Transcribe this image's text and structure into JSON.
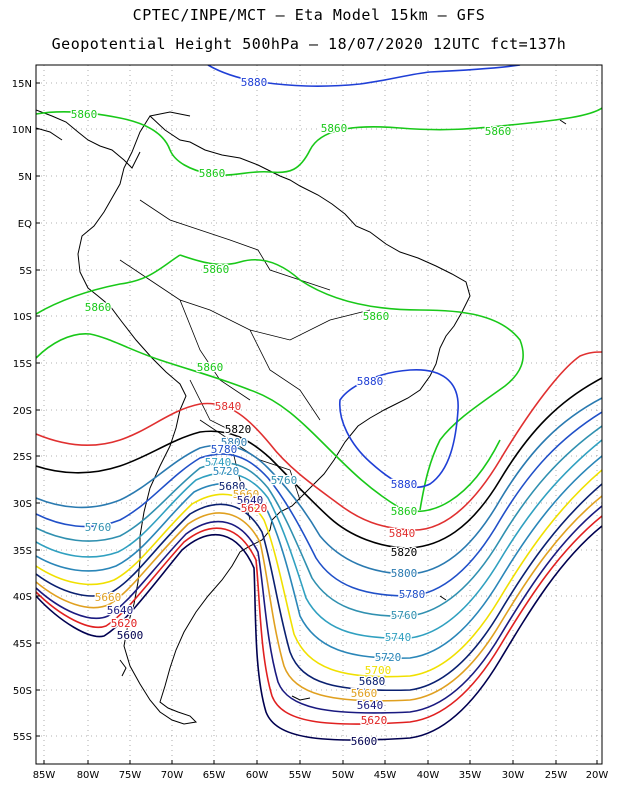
{
  "header": {
    "line1": "CPTEC/INPE/MCT –  Eta Model 15km – GFS",
    "line2": "Geopotential Height 500hPa – 18/07/2020 12UTC fct=137h"
  },
  "axes": {
    "lat_labels": [
      "15N",
      "10N",
      "5N",
      "EQ",
      "5S",
      "10S",
      "15S",
      "20S",
      "25S",
      "30S",
      "35S",
      "40S",
      "45S",
      "50S",
      "55S"
    ],
    "lon_labels": [
      "85W",
      "80W",
      "75W",
      "70W",
      "65W",
      "60W",
      "55W",
      "50W",
      "45W",
      "40W",
      "35W",
      "30W",
      "25W",
      "20W"
    ]
  },
  "contour_colors": {
    "5880": "#1f3fd6",
    "5860": "#19c819",
    "5840": "#e03030",
    "5820": "#000000",
    "5800": "#2a7ab0",
    "5780": "#2050c8",
    "5760": "#3090b0",
    "5740": "#30a0c0",
    "5720": "#2a86b8",
    "5700": "#f0e000",
    "5680": "#0a2070",
    "5660": "#e0a020",
    "5640": "#1a1a80",
    "5620": "#e02020",
    "5600": "#000050"
  },
  "contour_labels": [
    {
      "text": "5880",
      "color": "5880"
    },
    {
      "text": "5860",
      "color": "5860"
    },
    {
      "text": "5860",
      "color": "5860"
    },
    {
      "text": "5860",
      "color": "5860"
    },
    {
      "text": "5860",
      "color": "5860"
    },
    {
      "text": "5860",
      "color": "5860"
    },
    {
      "text": "5860",
      "color": "5860"
    },
    {
      "text": "5860",
      "color": "5860"
    },
    {
      "text": "5860",
      "color": "5860"
    },
    {
      "text": "5880",
      "color": "5880"
    },
    {
      "text": "5840",
      "color": "5840"
    },
    {
      "text": "5820",
      "color": "5820"
    },
    {
      "text": "5800",
      "color": "5800"
    },
    {
      "text": "5780",
      "color": "5780"
    },
    {
      "text": "5740",
      "color": "5740"
    },
    {
      "text": "5720",
      "color": "5720"
    },
    {
      "text": "5760",
      "color": "5760"
    },
    {
      "text": "5680",
      "color": "5680"
    },
    {
      "text": "5660",
      "color": "5660"
    },
    {
      "text": "5640",
      "color": "5640"
    },
    {
      "text": "5620",
      "color": "5620"
    },
    {
      "text": "5760",
      "color": "5760"
    },
    {
      "text": "5660",
      "color": "5660"
    },
    {
      "text": "5640",
      "color": "5640"
    },
    {
      "text": "5620",
      "color": "5620"
    },
    {
      "text": "5600",
      "color": "5600"
    },
    {
      "text": "5880",
      "color": "5880"
    },
    {
      "text": "5860",
      "color": "5860"
    },
    {
      "text": "5840",
      "color": "5840"
    },
    {
      "text": "5820",
      "color": "5820"
    },
    {
      "text": "5800",
      "color": "5800"
    },
    {
      "text": "5780",
      "color": "5780"
    },
    {
      "text": "5760",
      "color": "5760"
    },
    {
      "text": "5740",
      "color": "5740"
    },
    {
      "text": "5720",
      "color": "5720"
    },
    {
      "text": "5700",
      "color": "5700"
    },
    {
      "text": "5680",
      "color": "5680"
    },
    {
      "text": "5660",
      "color": "5660"
    },
    {
      "text": "5640",
      "color": "5640"
    },
    {
      "text": "5620",
      "color": "5620"
    },
    {
      "text": "5600",
      "color": "5600"
    }
  ]
}
